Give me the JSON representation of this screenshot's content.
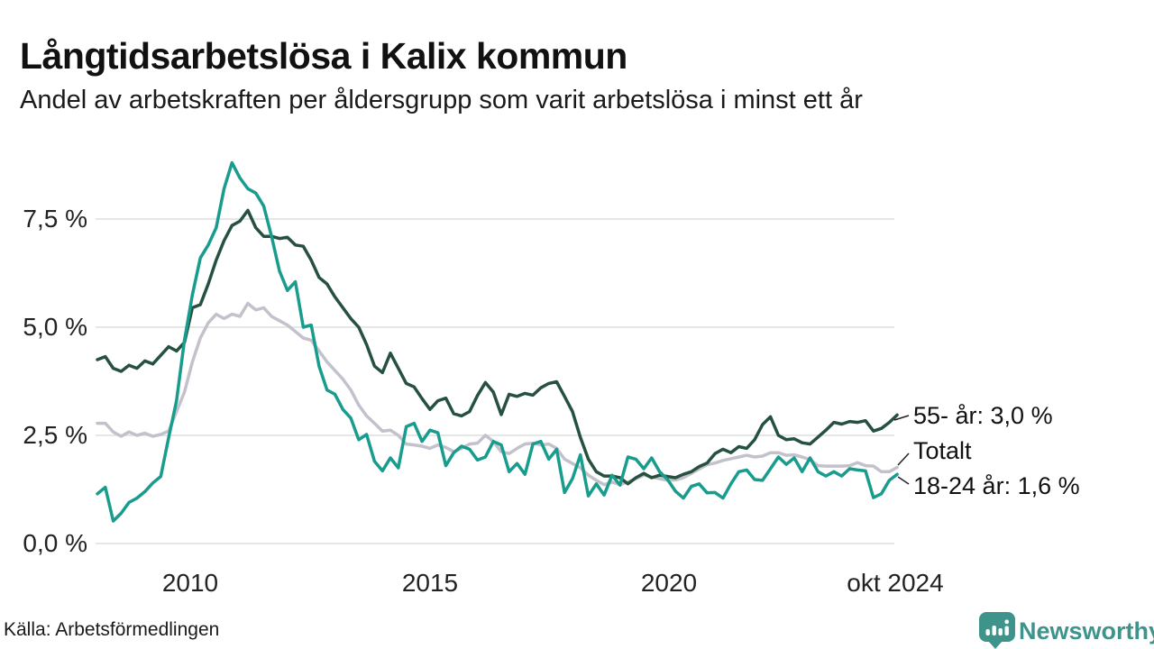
{
  "header": {
    "title": "Långtidsarbetslösa i Kalix kommun",
    "subtitle": "Andel av arbetskraften per åldersgrupp som varit arbetslösa i minst ett år"
  },
  "footer": {
    "source": "Källa: Arbetsförmedlingen",
    "brand": "Newsworthy"
  },
  "colors": {
    "series_55": "#26503F",
    "series_total": "#C3C2CC",
    "series_1824": "#189C8D",
    "gridline": "#DEDEDE",
    "brand_teal": "#3E948B",
    "text": "#111111"
  },
  "chart_data": {
    "type": "line",
    "title": "Långtidsarbetslösa i Kalix kommun",
    "subtitle": "Andel av arbetskraften per åldersgrupp som varit arbetslösa i minst ett år",
    "unit": "% av arbetskraften",
    "grid": true,
    "x_axis": {
      "ticks": [
        "2010",
        "2015",
        "2020",
        "okt 2024"
      ],
      "tick_years": [
        2010,
        2015,
        2020,
        2024.79
      ],
      "range_years": [
        2008.0,
        2024.83
      ]
    },
    "y_axis": {
      "ticks": [
        "0,0 %",
        "2,5 %",
        "5,0 %",
        "7,5 %"
      ],
      "tick_values": [
        0,
        2.5,
        5,
        7.5
      ],
      "ylim": [
        0,
        9.2
      ]
    },
    "series": [
      {
        "id": "totalt",
        "name": "Totalt",
        "label": "Totalt",
        "color": "#C3C2CC",
        "start_year": 2008.0,
        "step_years": 0.16667,
        "values": [
          2.78,
          2.78,
          2.58,
          2.48,
          2.58,
          2.5,
          2.55,
          2.48,
          2.52,
          2.6,
          3.05,
          3.5,
          4.2,
          4.75,
          5.1,
          5.3,
          5.2,
          5.3,
          5.25,
          5.55,
          5.4,
          5.45,
          5.25,
          5.15,
          5.05,
          4.9,
          4.75,
          4.7,
          4.45,
          4.2,
          4.0,
          3.8,
          3.55,
          3.2,
          2.95,
          2.78,
          2.6,
          2.62,
          2.5,
          2.3,
          2.28,
          2.25,
          2.2,
          2.28,
          2.22,
          2.12,
          2.2,
          2.3,
          2.32,
          2.5,
          2.36,
          2.12,
          2.08,
          2.2,
          2.3,
          2.32,
          2.28,
          2.3,
          2.2,
          1.95,
          1.85,
          1.75,
          1.58,
          1.46,
          1.36,
          1.42,
          1.36,
          1.42,
          1.5,
          1.58,
          1.54,
          1.5,
          1.46,
          1.47,
          1.52,
          1.62,
          1.72,
          1.82,
          1.86,
          1.92,
          1.96,
          2.0,
          2.04,
          2.0,
          2.02,
          2.1,
          2.1,
          2.04,
          2.05,
          2.0,
          1.94,
          1.8,
          1.79,
          1.79,
          1.79,
          1.8,
          1.87,
          1.8,
          1.79,
          1.66,
          1.66,
          1.76
        ]
      },
      {
        "id": "55_ar",
        "name": "55- år",
        "label": "55- år: 3,0 %",
        "end_value_text": "3,0 %",
        "color": "#26503F",
        "start_year": 2008.0,
        "step_years": 0.16667,
        "values": [
          4.25,
          4.32,
          4.05,
          3.98,
          4.12,
          4.05,
          4.22,
          4.15,
          4.35,
          4.55,
          4.45,
          4.65,
          5.45,
          5.52,
          6.0,
          6.55,
          7.0,
          7.35,
          7.45,
          7.7,
          7.3,
          7.1,
          7.1,
          7.05,
          7.08,
          6.9,
          6.87,
          6.55,
          6.15,
          6.0,
          5.7,
          5.45,
          5.2,
          5.0,
          4.6,
          4.1,
          3.95,
          4.4,
          4.05,
          3.7,
          3.62,
          3.35,
          3.1,
          3.3,
          3.36,
          3.0,
          2.95,
          3.05,
          3.42,
          3.72,
          3.5,
          2.98,
          3.45,
          3.4,
          3.47,
          3.43,
          3.6,
          3.7,
          3.74,
          3.4,
          3.05,
          2.45,
          1.95,
          1.66,
          1.56,
          1.56,
          1.52,
          1.38,
          1.52,
          1.62,
          1.52,
          1.58,
          1.55,
          1.52,
          1.6,
          1.66,
          1.78,
          1.86,
          2.08,
          2.18,
          2.1,
          2.24,
          2.2,
          2.4,
          2.75,
          2.93,
          2.5,
          2.4,
          2.42,
          2.33,
          2.3,
          2.46,
          2.62,
          2.8,
          2.76,
          2.82,
          2.8,
          2.84,
          2.6,
          2.66,
          2.8,
          2.97
        ]
      },
      {
        "id": "18_24_ar",
        "name": "18-24 år",
        "label": "18-24 år: 1,6 %",
        "end_value_text": "1,6 %",
        "color": "#189C8D",
        "start_year": 2008.0,
        "step_years": 0.16667,
        "values": [
          1.15,
          1.3,
          0.52,
          0.7,
          0.95,
          1.05,
          1.2,
          1.4,
          1.55,
          2.45,
          3.3,
          4.7,
          5.75,
          6.6,
          6.9,
          7.3,
          8.2,
          8.8,
          8.45,
          8.2,
          8.1,
          7.8,
          7.1,
          6.3,
          5.85,
          6.05,
          5.0,
          5.05,
          4.1,
          3.55,
          3.45,
          3.1,
          2.9,
          2.4,
          2.52,
          1.9,
          1.68,
          1.98,
          1.75,
          2.7,
          2.78,
          2.36,
          2.62,
          2.56,
          1.8,
          2.1,
          2.25,
          2.18,
          1.93,
          2.0,
          2.36,
          2.28,
          1.66,
          1.85,
          1.6,
          2.3,
          2.36,
          1.95,
          2.18,
          1.18,
          1.5,
          2.05,
          1.1,
          1.38,
          1.12,
          1.58,
          1.35,
          2.0,
          1.95,
          1.73,
          1.98,
          1.66,
          1.48,
          1.21,
          1.05,
          1.32,
          1.38,
          1.17,
          1.18,
          1.05,
          1.38,
          1.66,
          1.7,
          1.48,
          1.46,
          1.73,
          2.0,
          1.83,
          1.98,
          1.66,
          1.98,
          1.66,
          1.56,
          1.66,
          1.56,
          1.73,
          1.7,
          1.68,
          1.06,
          1.15,
          1.46,
          1.6
        ]
      }
    ],
    "legend_position": "right-end-labels"
  }
}
